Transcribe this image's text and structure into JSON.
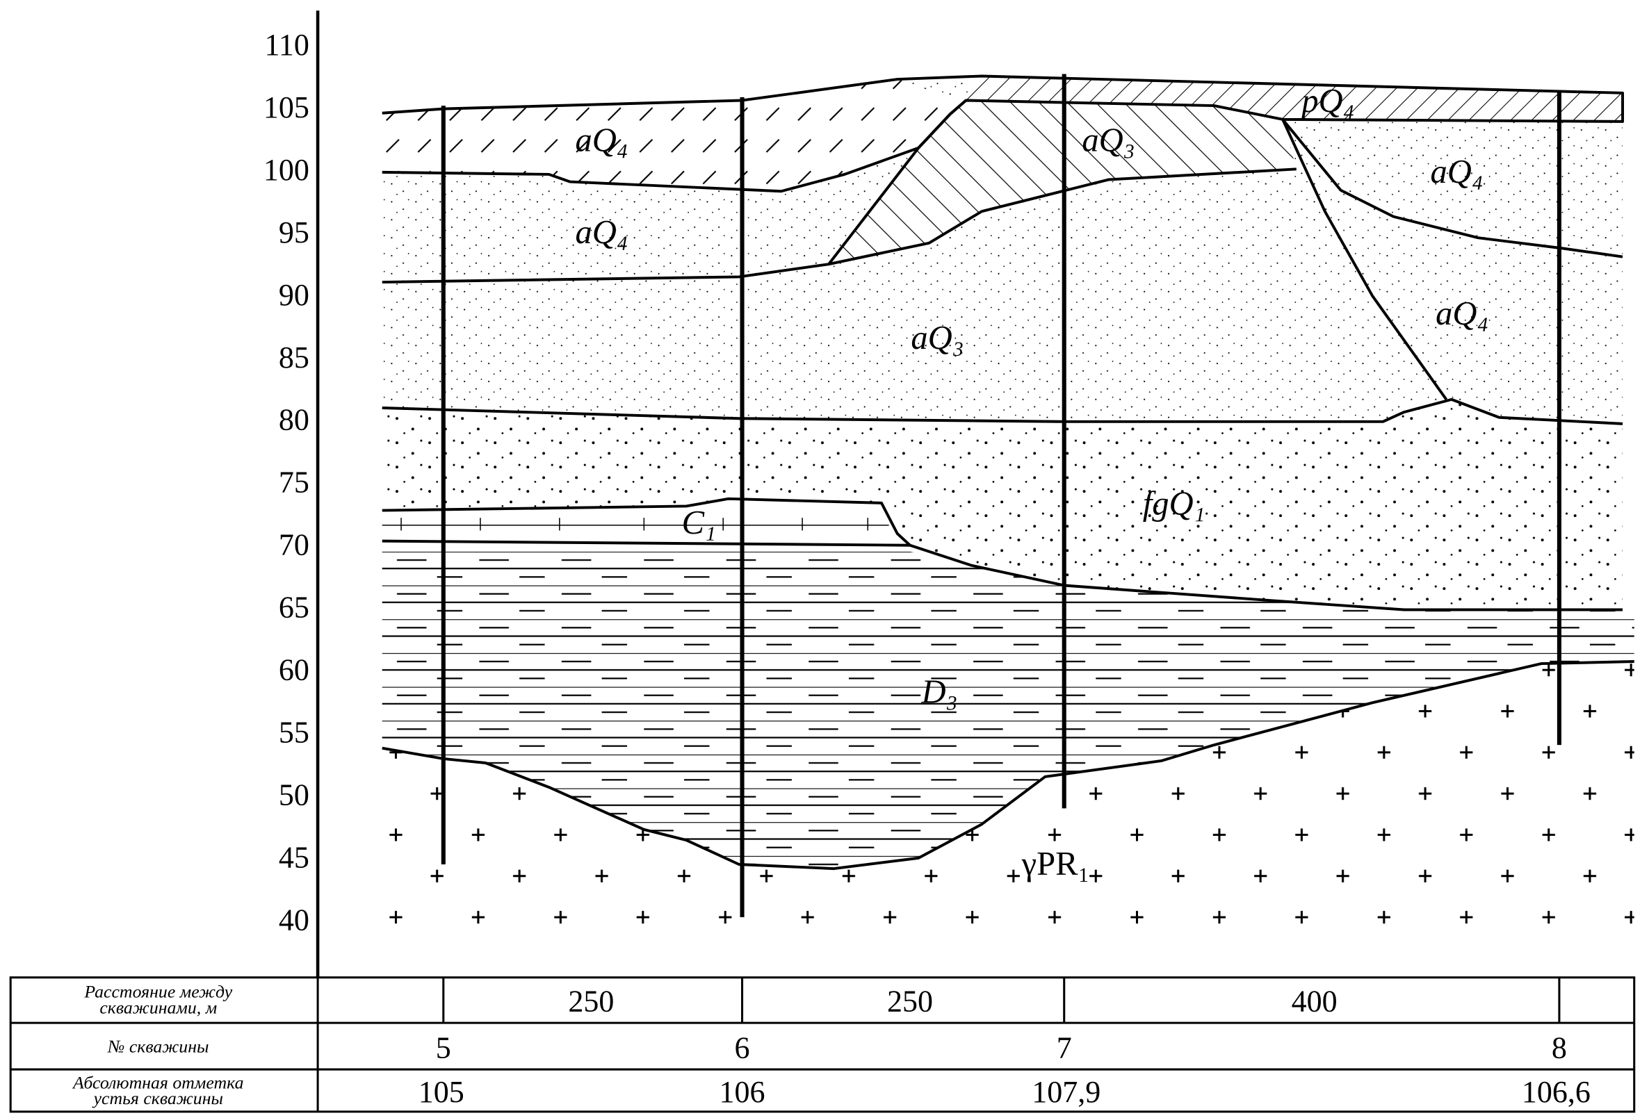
{
  "elevation_axis": {
    "ticks": [
      110,
      105,
      100,
      95,
      90,
      85,
      80,
      75,
      70,
      65,
      60,
      55,
      50,
      45,
      40
    ]
  },
  "layers": [
    {
      "label": "aQ₄"
    },
    {
      "label": "aQ₄"
    },
    {
      "label": "aQ₃"
    },
    {
      "label": "pQ₄"
    },
    {
      "label": "aQ₄"
    },
    {
      "label": "aQ₃"
    },
    {
      "label": "aQ₄"
    },
    {
      "label": "fgQ₁"
    },
    {
      "label": "C₁"
    },
    {
      "label": "D₃"
    },
    {
      "label": "γPR₁"
    }
  ],
  "table": {
    "rows": [
      {
        "header": [
          "Расстояние между",
          "скважинами, м"
        ],
        "cells": [
          "250",
          "250",
          "400"
        ]
      },
      {
        "header": [
          "№ скважины"
        ],
        "cells": [
          "5",
          "6",
          "7",
          "8"
        ]
      },
      {
        "header": [
          "Абсолютная отметка",
          "устья скважины"
        ],
        "cells": [
          "105",
          "106",
          "107,9",
          "106,6"
        ]
      }
    ]
  }
}
